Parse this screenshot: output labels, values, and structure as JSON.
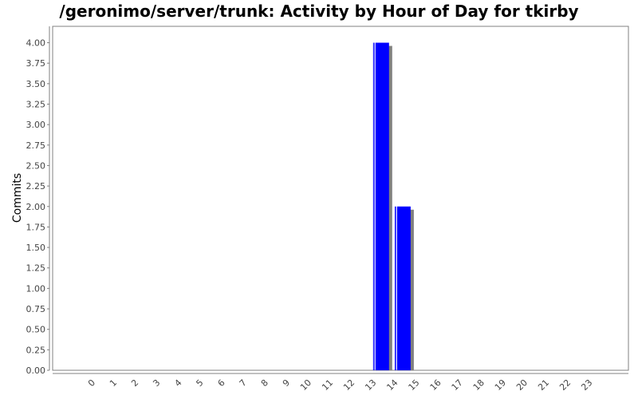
{
  "chart_data": {
    "type": "bar",
    "title": "/geronimo/server/trunk: Activity by Hour of Day for tkirby",
    "xlabel": "",
    "ylabel": "Commits",
    "categories": [
      "0",
      "1",
      "2",
      "3",
      "4",
      "5",
      "6",
      "7",
      "8",
      "9",
      "10",
      "11",
      "12",
      "13",
      "14",
      "15",
      "16",
      "17",
      "18",
      "19",
      "20",
      "21",
      "22",
      "23"
    ],
    "values": [
      0,
      0,
      0,
      0,
      0,
      0,
      0,
      0,
      0,
      0,
      0,
      0,
      0,
      4,
      2,
      0,
      0,
      0,
      0,
      0,
      0,
      0,
      0,
      0
    ],
    "ylim": [
      0,
      4.2
    ],
    "yticks": [
      "0.00",
      "0.25",
      "0.50",
      "0.75",
      "1.00",
      "1.25",
      "1.50",
      "1.75",
      "2.00",
      "2.25",
      "2.50",
      "2.75",
      "3.00",
      "3.25",
      "3.50",
      "3.75",
      "4.00"
    ],
    "grid": false,
    "legend": "none",
    "colors": {
      "bar": "#0000ff",
      "bar_shadow": "#808080",
      "axis": "#808080",
      "plot_border": "#808080"
    }
  }
}
